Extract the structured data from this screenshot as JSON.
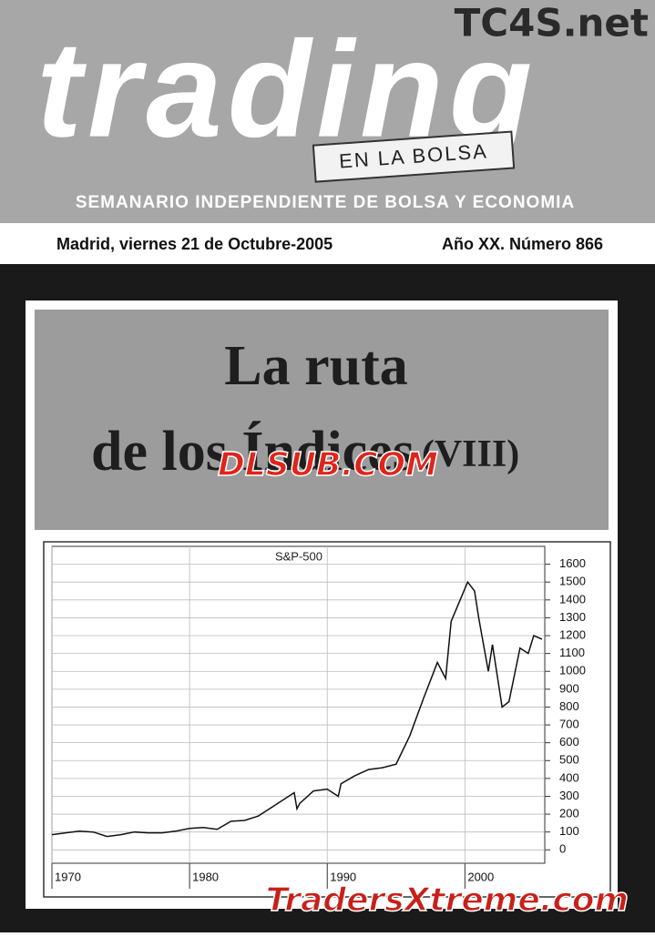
{
  "header": {
    "watermark": "TC4S.net",
    "logo": "trading",
    "subtitle": "EN LA BOLSA",
    "tagline": "SEMANARIO INDEPENDIENTE DE BOLSA Y ECONOMIA"
  },
  "issue": {
    "date": "Madrid, viernes 21 de Octubre-2005",
    "number": "Año XX. Número 866"
  },
  "cover": {
    "title_line1": "La ruta",
    "title_line2": "de los Índices",
    "part": "(VIII)",
    "watermark": "DLSUB.COM"
  },
  "footer_watermark": "TradersXtreme.com",
  "chart_data": {
    "type": "line",
    "title": "S&P-500",
    "x": [
      1970,
      1971,
      1972,
      1973,
      1974,
      1975,
      1976,
      1977,
      1978,
      1979,
      1980,
      1981,
      1982,
      1983,
      1984,
      1985,
      1986,
      1987.6,
      1987.8,
      1988,
      1989,
      1990,
      1990.8,
      1991,
      1992,
      1993,
      1994,
      1995,
      1996,
      1997,
      1998,
      1998.6,
      1999,
      2000.2,
      2000.7,
      2001,
      2001.7,
      2002,
      2002.7,
      2003.2,
      2004,
      2004.6,
      2005,
      2005.6
    ],
    "series": [
      {
        "name": "S&P-500",
        "color": "#111111",
        "values": [
          85,
          95,
          105,
          100,
          75,
          85,
          100,
          95,
          95,
          105,
          120,
          125,
          115,
          160,
          165,
          190,
          240,
          320,
          230,
          260,
          330,
          340,
          300,
          370,
          415,
          450,
          460,
          480,
          640,
          850,
          1050,
          960,
          1280,
          1500,
          1450,
          1300,
          1000,
          1150,
          800,
          830,
          1130,
          1100,
          1200,
          1180
        ]
      }
    ],
    "xlim": [
      1970,
      2005.8
    ],
    "xticks": [
      1970,
      1980,
      1990,
      2000
    ],
    "ylim": [
      -75,
      1700
    ],
    "yticks": [
      0,
      100,
      200,
      300,
      400,
      500,
      600,
      700,
      800,
      900,
      1000,
      1100,
      1200,
      1300,
      1400,
      1500,
      1600
    ],
    "grid": true
  }
}
